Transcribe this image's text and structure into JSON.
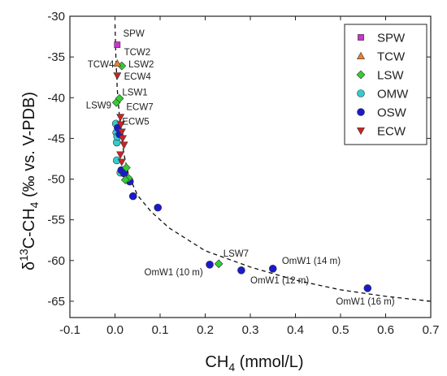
{
  "chart_data": {
    "type": "scatter",
    "title": "",
    "xlabel": "CH",
    "xlabel_sub": "4",
    "xlabel_suffix": " (mmol/L)",
    "ylabel_parts": [
      "δ",
      "13",
      "C-CH",
      "4",
      " (‰ vs. V-PDB)"
    ],
    "xlim": [
      -0.1,
      0.7
    ],
    "ylim": [
      -67,
      -30
    ],
    "xticks": [
      -0.1,
      0.0,
      0.1,
      0.2,
      0.3,
      0.4,
      0.5,
      0.6,
      0.7
    ],
    "xtick_labels": [
      "-0.1",
      "0.0",
      "0.1",
      "0.2",
      "0.3",
      "0.4",
      "0.5",
      "0.6",
      "0.7"
    ],
    "yticks": [
      -65,
      -60,
      -55,
      -50,
      -45,
      -40,
      -35,
      -30
    ],
    "ytick_labels": [
      "-65",
      "-60",
      "-55",
      "-50",
      "-45",
      "-40",
      "-35",
      "-30"
    ],
    "grid": false,
    "legend_position": "top-right",
    "series": [
      {
        "name": "SPW",
        "marker": "square",
        "color": "#cc33cc",
        "points": [
          {
            "x": 0.005,
            "y": -33.5
          }
        ]
      },
      {
        "name": "TCW",
        "marker": "triangle-up",
        "color": "#f07f2a",
        "points": [
          {
            "x": 0.005,
            "y": -35.8
          }
        ]
      },
      {
        "name": "LSW",
        "marker": "diamond",
        "color": "#33cc33",
        "points": [
          {
            "x": 0.015,
            "y": -36.1
          },
          {
            "x": 0.003,
            "y": -40.6
          },
          {
            "x": 0.01,
            "y": -40.1
          },
          {
            "x": 0.025,
            "y": -48.6
          },
          {
            "x": 0.03,
            "y": -49.9
          },
          {
            "x": 0.023,
            "y": -50.1
          },
          {
            "x": 0.23,
            "y": -60.4
          }
        ]
      },
      {
        "name": "OMW",
        "marker": "circle",
        "color": "#33cccc",
        "points": [
          {
            "x": 0.002,
            "y": -43.2
          },
          {
            "x": 0.003,
            "y": -44.3
          },
          {
            "x": 0.004,
            "y": -45.5
          },
          {
            "x": 0.004,
            "y": -47.7
          },
          {
            "x": 0.005,
            "y": -44.8
          },
          {
            "x": 0.012,
            "y": -49.2
          }
        ]
      },
      {
        "name": "OSW",
        "marker": "circle",
        "color": "#1a1acc",
        "points": [
          {
            "x": 0.006,
            "y": -43.7
          },
          {
            "x": 0.01,
            "y": -44.5
          },
          {
            "x": 0.014,
            "y": -48.9
          },
          {
            "x": 0.02,
            "y": -49.3
          },
          {
            "x": 0.033,
            "y": -50.3
          },
          {
            "x": 0.04,
            "y": -52.1
          },
          {
            "x": 0.095,
            "y": -53.5
          },
          {
            "x": 0.21,
            "y": -60.5
          },
          {
            "x": 0.28,
            "y": -61.2
          },
          {
            "x": 0.35,
            "y": -61.0
          },
          {
            "x": 0.56,
            "y": -63.4
          }
        ]
      },
      {
        "name": "ECW",
        "marker": "triangle-down",
        "color": "#cc2222",
        "points": [
          {
            "x": 0.005,
            "y": -37.3
          },
          {
            "x": 0.012,
            "y": -42.4
          },
          {
            "x": 0.013,
            "y": -43.3
          },
          {
            "x": 0.015,
            "y": -44.2
          },
          {
            "x": 0.017,
            "y": -45.0
          },
          {
            "x": 0.02,
            "y": -45.8
          },
          {
            "x": 0.012,
            "y": -47.0
          },
          {
            "x": 0.015,
            "y": -47.9
          }
        ]
      }
    ],
    "trend_curve": {
      "style": "dashed",
      "color": "#111111",
      "points": [
        [
          0.0,
          -31.0
        ],
        [
          0.002,
          -35.0
        ],
        [
          0.005,
          -39.0
        ],
        [
          0.01,
          -42.5
        ],
        [
          0.015,
          -45.0
        ],
        [
          0.02,
          -47.0
        ],
        [
          0.03,
          -49.5
        ],
        [
          0.05,
          -52.0
        ],
        [
          0.08,
          -54.0
        ],
        [
          0.12,
          -56.0
        ],
        [
          0.2,
          -58.8
        ],
        [
          0.3,
          -60.8
        ],
        [
          0.4,
          -62.4
        ],
        [
          0.5,
          -63.6
        ],
        [
          0.6,
          -64.4
        ],
        [
          0.7,
          -65.0
        ]
      ]
    },
    "annotations": [
      {
        "text": "SPW",
        "x": 0.018,
        "y": -32.5,
        "anchor": "start"
      },
      {
        "text": "TCW2",
        "x": 0.02,
        "y": -34.8,
        "anchor": "start"
      },
      {
        "text": "LSW2",
        "x": 0.03,
        "y": -36.3,
        "anchor": "start"
      },
      {
        "text": "TCW4",
        "x": -0.002,
        "y": -36.3,
        "anchor": "end"
      },
      {
        "text": "ECW4",
        "x": 0.02,
        "y": -37.8,
        "anchor": "start"
      },
      {
        "text": "LSW1",
        "x": 0.016,
        "y": -39.7,
        "anchor": "start"
      },
      {
        "text": "LSW9",
        "x": -0.008,
        "y": -41.3,
        "anchor": "end"
      },
      {
        "text": "ECW7",
        "x": 0.025,
        "y": -41.5,
        "anchor": "start"
      },
      {
        "text": "ECW5",
        "x": 0.016,
        "y": -43.3,
        "anchor": "start"
      },
      {
        "text": "LSW7",
        "x": 0.24,
        "y": -59.5,
        "anchor": "start"
      },
      {
        "text": "OmW1 (10 m)",
        "x": 0.195,
        "y": -61.8,
        "anchor": "end"
      },
      {
        "text": "OmW1 (12 m)",
        "x": 0.3,
        "y": -62.8,
        "anchor": "start"
      },
      {
        "text": "OmW1 (14 m)",
        "x": 0.37,
        "y": -60.4,
        "anchor": "start"
      },
      {
        "text": "OmW1 (16 m)",
        "x": 0.62,
        "y": -65.4,
        "anchor": "end"
      }
    ]
  }
}
